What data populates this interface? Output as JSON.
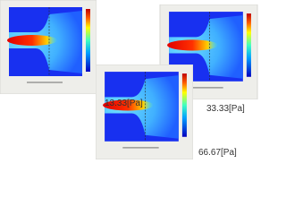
{
  "panels": [
    {
      "label": "13.33[Pa]"
    },
    {
      "label": "33.33[Pa]"
    },
    {
      "label": "66.67[Pa]"
    }
  ]
}
